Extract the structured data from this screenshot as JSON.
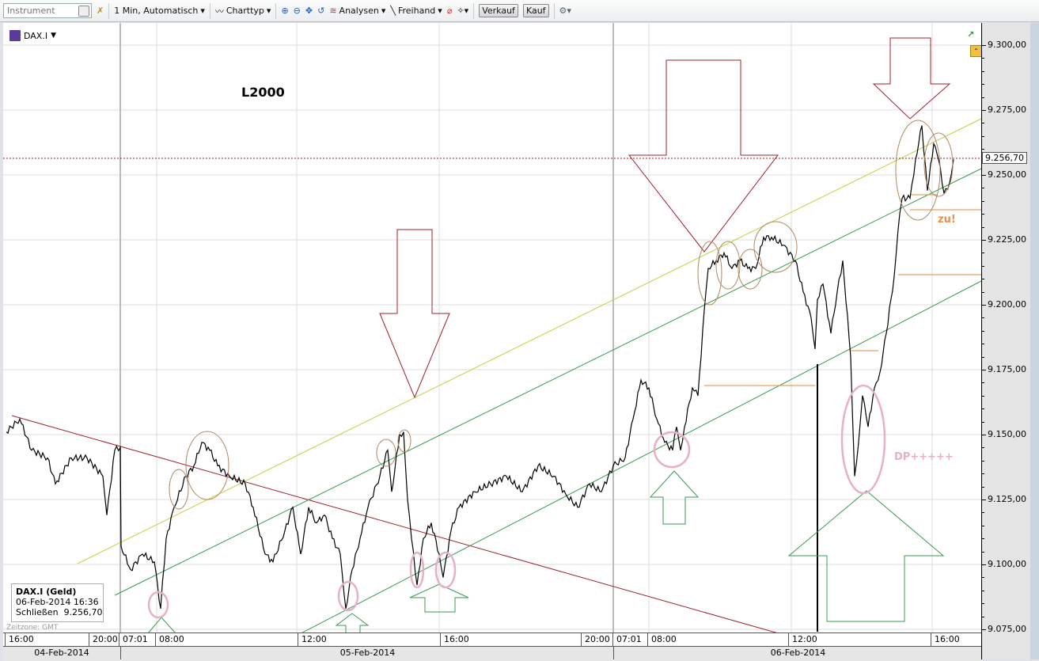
{
  "toolbar": {
    "instrument_placeholder": "Instrument",
    "interval": "1 Min,  Automatisch",
    "charttype": "Charttyp",
    "analysen": "Analysen",
    "freihand": "Freihand",
    "sell": "Verkauf",
    "buy": "Kauf"
  },
  "symbol": {
    "name": "DAX.I"
  },
  "annotations": {
    "label_l2000": "L2000",
    "label_zu": "zu!",
    "label_dp": "DP+++++"
  },
  "infobox": {
    "title": "DAX.I (Geld)",
    "datetime": "06-Feb-2014 16:36",
    "close_label": "Schließen",
    "close_value": "9.256,70"
  },
  "timezone": "Zeitzone: GMT",
  "colors": {
    "price": "#000000",
    "trend_red": "#a0202a",
    "trend_yellow": "#c8d040",
    "trend_green": "#3a9a50",
    "support": "#e8a060",
    "highlight_pink": "#e8b0c8",
    "circle_brown": "#b08860"
  },
  "chart_data": {
    "type": "line",
    "title": "",
    "ylim": [
      9075,
      9305
    ],
    "y_ticks": [
      "9.075,00",
      "9.100,00",
      "9.125,00",
      "9.150,00",
      "9.175,00",
      "9.200,00",
      "9.225,00",
      "9.250,00",
      "9.275,00",
      "9.300,00"
    ],
    "y_tick_values": [
      9075,
      9100,
      9125,
      9150,
      9175,
      9200,
      9225,
      9250,
      9275,
      9300
    ],
    "last_price": 9256.7,
    "last_price_label": "9.256,70",
    "time_ticks": [
      "16:00",
      "20:00",
      "07:01",
      "08:00",
      "12:00",
      "16:00",
      "20:00",
      "07:01",
      "08:00",
      "12:00",
      "16:00"
    ],
    "date_labels": [
      "04-Feb-2014",
      "05-Feb-2014",
      "06-Feb-2014"
    ],
    "grid": true,
    "series": [
      {
        "values": [
          9151,
          9156,
          9144,
          9141,
          9131,
          9141,
          9141,
          9134,
          9119,
          9144,
          9145,
          9107,
          9098,
          9104,
          9101,
          9083,
          9110,
          9122,
          9134,
          9138,
          9147,
          9144,
          9138,
          9134,
          9131,
          9122,
          9104,
          9101,
          9113,
          9122,
          9104,
          9122,
          9116,
          9119,
          9110,
          9104,
          9083,
          9098,
          9110,
          9122,
          9134,
          9144,
          9128,
          9150,
          9151,
          9125,
          9110,
          9092,
          9110,
          9116,
          9104,
          9095,
          9113,
          9122,
          9128,
          9131,
          9134,
          9128,
          9138,
          9134,
          9127,
          9122,
          9131,
          9128,
          9138,
          9141,
          9156,
          9171,
          9168,
          9156,
          9147,
          9144,
          9153,
          9144,
          9153,
          9168,
          9165,
          9180,
          9198,
          9214,
          9217,
          9220,
          9214,
          9217,
          9214,
          9214,
          9226,
          9226,
          9223,
          9217,
          9205,
          9195,
          9183,
          9202,
          9208,
          9189,
          9205,
          9217,
          9180,
          9134,
          9147,
          9165,
          9153,
          9168,
          9174,
          9189,
          9211,
          9235,
          9241,
          9241,
          9256,
          9269,
          9244,
          9262,
          9256,
          9243,
          9247,
          9256
        ]
      }
    ]
  }
}
